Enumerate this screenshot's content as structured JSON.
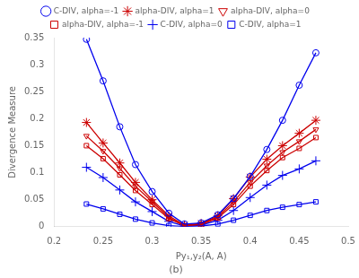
{
  "chart_data": {
    "type": "line",
    "title": "(b)",
    "xlabel": "Py₁,y₂(A, A)",
    "ylabel": "Divergence Measure",
    "xlim": [
      0.2,
      0.5
    ],
    "ylim": [
      0,
      0.35
    ],
    "xticks": [
      0.2,
      0.25,
      0.3,
      0.35,
      0.4,
      0.45,
      0.5
    ],
    "yticks": [
      0,
      0.05,
      0.1,
      0.15,
      0.2,
      0.25,
      0.3,
      0.35
    ],
    "grid": false,
    "legend": "top",
    "series": [
      {
        "name": "C-DIV, alpha=-1",
        "color": "#0000ee",
        "marker": "circle",
        "x": [
          0.233,
          0.25,
          0.267,
          0.283,
          0.3,
          0.317,
          0.333,
          0.35,
          0.367,
          0.383,
          0.4,
          0.417,
          0.433,
          0.45,
          0.467
        ],
        "values": [
          0.347,
          0.27,
          0.185,
          0.115,
          0.065,
          0.025,
          0.005,
          0.007,
          0.022,
          0.052,
          0.093,
          0.143,
          0.197,
          0.262,
          0.322
        ]
      },
      {
        "name": "alpha-DIV, alpha=1",
        "color": "#cc0000",
        "marker": "star",
        "x": [
          0.233,
          0.25,
          0.267,
          0.283,
          0.3,
          0.317,
          0.333,
          0.35,
          0.367,
          0.383,
          0.4,
          0.417,
          0.433,
          0.45,
          0.467
        ],
        "values": [
          0.193,
          0.155,
          0.118,
          0.082,
          0.05,
          0.02,
          0.003,
          0.006,
          0.02,
          0.052,
          0.092,
          0.125,
          0.15,
          0.173,
          0.197
        ]
      },
      {
        "name": "alpha-DIV, alpha=0",
        "color": "#cc0000",
        "marker": "triangle_down",
        "x": [
          0.233,
          0.25,
          0.267,
          0.283,
          0.3,
          0.317,
          0.333,
          0.35,
          0.367,
          0.383,
          0.4,
          0.417,
          0.433,
          0.45,
          0.467
        ],
        "values": [
          0.168,
          0.14,
          0.108,
          0.075,
          0.046,
          0.017,
          0.002,
          0.005,
          0.018,
          0.046,
          0.082,
          0.113,
          0.138,
          0.158,
          0.18
        ]
      },
      {
        "name": "alpha-DIV, alpha=-1",
        "color": "#cc0000",
        "marker": "square",
        "x": [
          0.233,
          0.25,
          0.267,
          0.283,
          0.3,
          0.317,
          0.333,
          0.35,
          0.367,
          0.383,
          0.4,
          0.417,
          0.433,
          0.45,
          0.467
        ],
        "values": [
          0.15,
          0.126,
          0.096,
          0.067,
          0.041,
          0.015,
          0.002,
          0.004,
          0.016,
          0.041,
          0.075,
          0.104,
          0.128,
          0.145,
          0.165
        ]
      },
      {
        "name": "C-DIV, alpha=0",
        "color": "#0000ee",
        "marker": "plus",
        "x": [
          0.233,
          0.25,
          0.267,
          0.283,
          0.3,
          0.317,
          0.333,
          0.35,
          0.367,
          0.383,
          0.4,
          0.417,
          0.433,
          0.45,
          0.467
        ],
        "values": [
          0.11,
          0.091,
          0.068,
          0.046,
          0.028,
          0.01,
          0.001,
          0.003,
          0.012,
          0.03,
          0.054,
          0.077,
          0.095,
          0.107,
          0.122
        ]
      },
      {
        "name": "C-DIV, alpha=1",
        "color": "#0000ee",
        "marker": "square",
        "x": [
          0.233,
          0.25,
          0.267,
          0.283,
          0.3,
          0.317,
          0.333,
          0.35,
          0.367,
          0.383,
          0.4,
          0.417,
          0.433,
          0.45,
          0.467
        ],
        "values": [
          0.042,
          0.033,
          0.023,
          0.014,
          0.007,
          0.002,
          0.0004,
          0.0013,
          0.005,
          0.012,
          0.021,
          0.03,
          0.036,
          0.041,
          0.046
        ]
      }
    ]
  }
}
